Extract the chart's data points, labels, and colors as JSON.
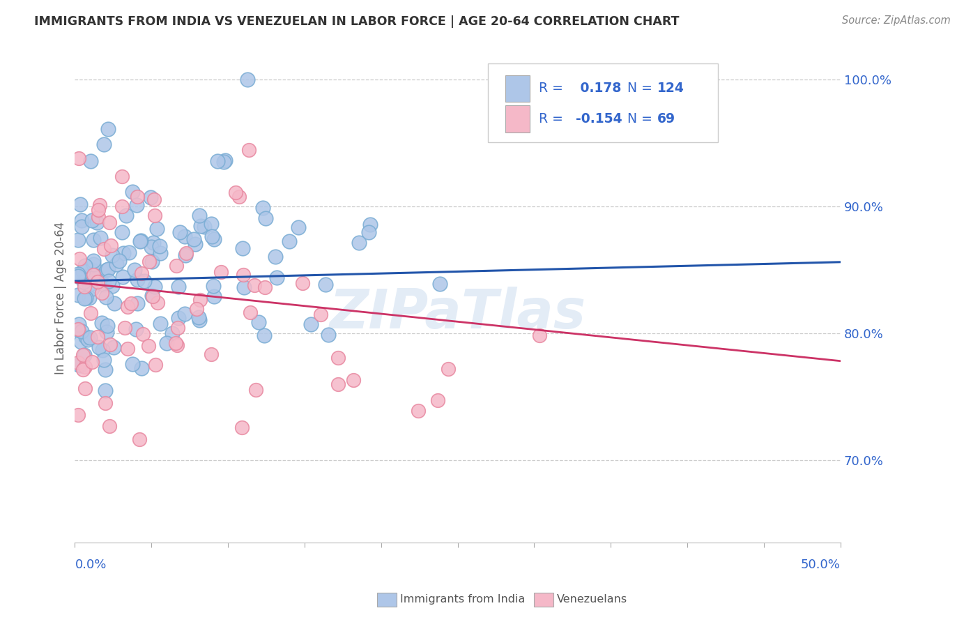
{
  "title": "IMMIGRANTS FROM INDIA VS VENEZUELAN IN LABOR FORCE | AGE 20-64 CORRELATION CHART",
  "source": "Source: ZipAtlas.com",
  "ylabel": "In Labor Force | Age 20-64",
  "ytick_labels": [
    "100.0%",
    "90.0%",
    "80.0%",
    "70.0%"
  ],
  "ytick_values": [
    1.0,
    0.9,
    0.8,
    0.7
  ],
  "xlim": [
    0.0,
    0.5
  ],
  "ylim": [
    0.635,
    1.02
  ],
  "india_color": "#aec6e8",
  "india_edge_color": "#7aadd4",
  "india_line_color": "#2255aa",
  "venezuela_color": "#f5b8c8",
  "venezuela_edge_color": "#e888a0",
  "venezuela_line_color": "#cc3366",
  "india_R": 0.178,
  "india_N": 124,
  "venezuela_R": -0.154,
  "venezuela_N": 69,
  "legend_label_india": "Immigrants from India",
  "legend_label_venezuela": "Venezuelans",
  "watermark": "ZIPaTlas",
  "legend_text_color": "#3366cc",
  "axis_label_color": "#3366cc",
  "title_color": "#333333",
  "source_color": "#888888",
  "grid_color": "#cccccc",
  "bottom_spine_color": "#cccccc"
}
